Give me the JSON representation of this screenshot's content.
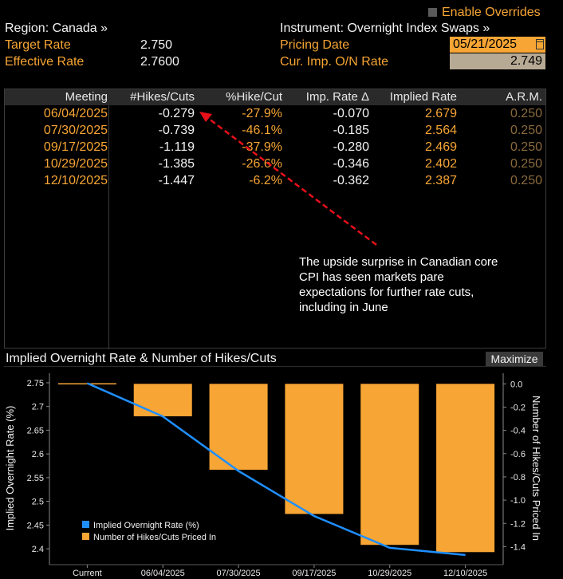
{
  "header": {
    "enable_overrides": "Enable Overrides",
    "region_label": "Region: Canada »",
    "instrument_label": "Instrument: Overnight Index Swaps »",
    "target_rate_label": "Target Rate",
    "target_rate_value": "2.750",
    "effective_rate_label": "Effective Rate",
    "effective_rate_value": "2.7600",
    "pricing_date_label": "Pricing Date",
    "pricing_date_value": "05/21/2025",
    "cur_imp_label": "Cur. Imp. O/N Rate",
    "cur_imp_value": "2.749"
  },
  "table": {
    "columns": [
      "Meeting",
      "#Hikes/Cuts",
      "%Hike/Cut",
      "Imp. Rate Δ",
      "Implied Rate",
      "A.R.M."
    ],
    "rows": [
      {
        "meeting": "06/04/2025",
        "hikes": "-0.279",
        "pct": "-27.9%",
        "delta": "-0.070",
        "implied": "2.679",
        "arm": "0.250"
      },
      {
        "meeting": "07/30/2025",
        "hikes": "-0.739",
        "pct": "-46.1%",
        "delta": "-0.185",
        "implied": "2.564",
        "arm": "0.250"
      },
      {
        "meeting": "09/17/2025",
        "hikes": "-1.119",
        "pct": "-37.9%",
        "delta": "-0.280",
        "implied": "2.469",
        "arm": "0.250"
      },
      {
        "meeting": "10/29/2025",
        "hikes": "-1.385",
        "pct": "-26.6%",
        "delta": "-0.346",
        "implied": "2.402",
        "arm": "0.250"
      },
      {
        "meeting": "12/10/2025",
        "hikes": "-1.447",
        "pct": "-6.2%",
        "delta": "-0.362",
        "implied": "2.387",
        "arm": "0.250"
      }
    ]
  },
  "annotation": "The upside surprise in Canadian core CPI has seen markets pare expectations for further rate cuts, including in June",
  "chart": {
    "title": "Implied Overnight Rate & Number of Hikes/Cuts",
    "maximize_label": "Maximize"
  },
  "colors": {
    "orange": "#f7a534",
    "line_blue": "#1f8fff",
    "header_bg": "#2a2a2a"
  },
  "chart_data": {
    "type": "bar+line",
    "title": "Implied Overnight Rate & Number of Hikes/Cuts",
    "categories": [
      "Current",
      "06/04/2025",
      "07/30/2025",
      "09/17/2025",
      "10/29/2025",
      "12/10/2025"
    ],
    "series": [
      {
        "name": "Implied Overnight Rate (%)",
        "type": "line",
        "axis": "left",
        "values": [
          2.749,
          2.679,
          2.564,
          2.469,
          2.402,
          2.387
        ]
      },
      {
        "name": "Number of Hikes/Cuts Priced In",
        "type": "bar",
        "axis": "right",
        "values": [
          0.0,
          -0.279,
          -0.739,
          -1.119,
          -1.385,
          -1.447
        ]
      }
    ],
    "ylabel_left": "Implied Overnight Rate (%)",
    "ylabel_right": "Number of Hikes/Cuts Priced In",
    "ylim_left": [
      2.38,
      2.76
    ],
    "yticks_left": [
      "2.75",
      "2.7",
      "2.65",
      "2.6",
      "2.55",
      "2.5",
      "2.45",
      "2.4"
    ],
    "ylim_right": [
      -1.5,
      0.05
    ],
    "yticks_right": [
      "0.0",
      "-0.2",
      "-0.4",
      "-0.6",
      "-0.8",
      "-1.0",
      "-1.2",
      "-1.4"
    ],
    "legend_position": "bottom-left"
  }
}
